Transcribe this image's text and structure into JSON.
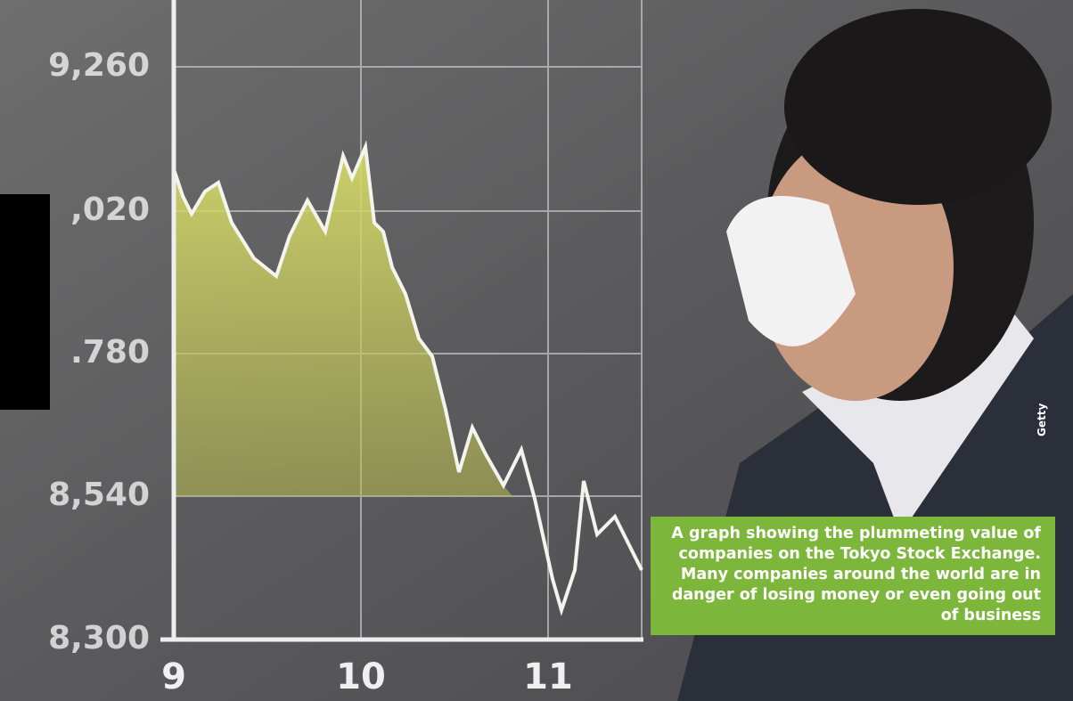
{
  "screen": {
    "y_labels": [
      "9,260",
      ",020",
      ".780",
      "8,540",
      "8,300"
    ],
    "x_labels": [
      "9",
      "10",
      "11"
    ]
  },
  "caption": "A graph showing the plummeting value of companies on the Tokyo Stock Exchange. Many companies around the world are in danger of losing money or even going out of business",
  "credit": "Getty"
}
